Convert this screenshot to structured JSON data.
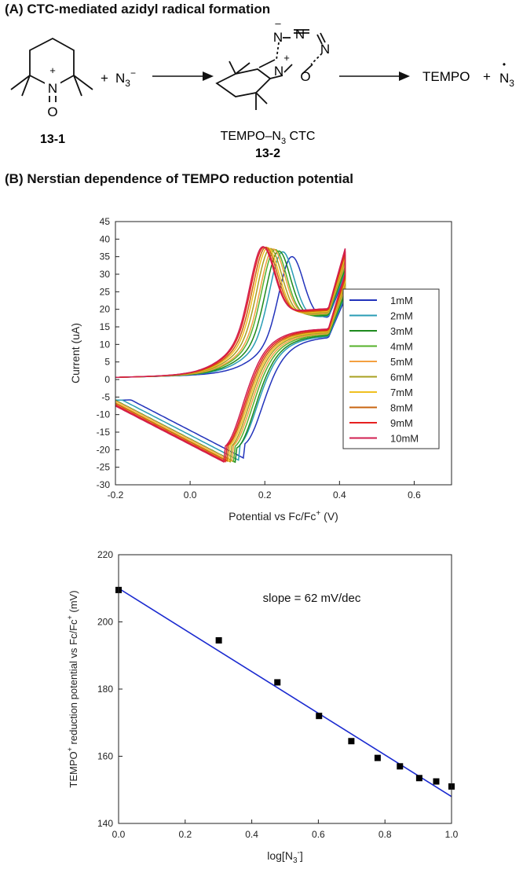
{
  "figure": {
    "panel_a_title": "(A) CTC-mediated azidyl radical formation",
    "panel_b_title": "(B) Nerstian dependence of TEMPO reduction potential"
  },
  "scheme": {
    "compound1": "13-1",
    "plus1": "+",
    "azide_base": "N",
    "azide_sub": "3",
    "azide_sup": "−",
    "ctc_label_main": "TEMPO–N",
    "ctc_label_sub": "3",
    "ctc_label_end": " CTC",
    "compound2": "13-2",
    "product": "TEMPO",
    "plus2": "+",
    "radical_base": "N",
    "radical_sub": "3",
    "radical_dot": "•",
    "atom_N": "N",
    "atom_O": "O",
    "charge_plus": "+",
    "charge_minus": "–",
    "ring_atom_N": "N",
    "ring_atom_O": "O",
    "ring_plus": "+"
  },
  "colors": {
    "series": [
      "#2233bb",
      "#2a9db5",
      "#1e8a1e",
      "#55b22a",
      "#f4a040",
      "#a8a020",
      "#f0c020",
      "#c86410",
      "#e62020",
      "#d01f50"
    ],
    "fit": "#1a2ad0",
    "markers": "#000000"
  },
  "chart_data": [
    {
      "type": "line",
      "title": "",
      "xlabel": "Potential vs Fc/Fc",
      "xlabel_sup": "+",
      "xlabel_tail": " (V)",
      "ylabel": "Current (uA)",
      "xlim": [
        -0.2,
        0.7
      ],
      "ylim": [
        -30,
        45
      ],
      "xticks": [
        -0.2,
        0.0,
        0.2,
        0.4,
        0.6
      ],
      "xtick_labels": [
        "-0.2",
        "0.0",
        "0.2",
        "0.4",
        "0.6"
      ],
      "yticks": [
        -30,
        -25,
        -20,
        -15,
        -10,
        -5,
        0,
        5,
        10,
        15,
        20,
        25,
        30,
        35,
        40,
        45
      ],
      "ytick_labels": [
        "-30",
        "-25",
        "-20",
        "-15",
        "-10",
        "-5",
        "0",
        "5",
        "10",
        "15",
        "20",
        "25",
        "30",
        "35",
        "40",
        "45"
      ],
      "legend_position": "right",
      "series": [
        {
          "name": "1mM",
          "Ea": 0.27,
          "Ec": 0.145,
          "Ipa": 36.5,
          "Ipc": -22.5
        },
        {
          "name": "2mM",
          "Ea": 0.245,
          "Ec": 0.13,
          "Ipa": 38.0,
          "Ipc": -23.0
        },
        {
          "name": "3mM",
          "Ea": 0.235,
          "Ec": 0.125,
          "Ipa": 38.3,
          "Ipc": -23.8
        },
        {
          "name": "4mM",
          "Ea": 0.225,
          "Ec": 0.118,
          "Ipa": 38.8,
          "Ipc": -23.5
        },
        {
          "name": "5mM",
          "Ea": 0.22,
          "Ec": 0.113,
          "Ipa": 39.0,
          "Ipc": -23.3
        },
        {
          "name": "6mM",
          "Ea": 0.212,
          "Ec": 0.108,
          "Ipa": 39.2,
          "Ipc": -23.5
        },
        {
          "name": "7mM",
          "Ea": 0.205,
          "Ec": 0.104,
          "Ipa": 39.5,
          "Ipc": -23.3
        },
        {
          "name": "8mM",
          "Ea": 0.2,
          "Ec": 0.1,
          "Ipa": 39.7,
          "Ipc": -23.3
        },
        {
          "name": "9mM",
          "Ea": 0.195,
          "Ec": 0.096,
          "Ipa": 39.8,
          "Ipc": -23.5
        },
        {
          "name": "10mM",
          "Ea": 0.192,
          "Ec": 0.092,
          "Ipa": 40.0,
          "Ipc": -23.6
        }
      ]
    },
    {
      "type": "scatter",
      "title": "",
      "xlabel": "log[N",
      "xlabel_sub": "3",
      "xlabel_sup": "-",
      "xlabel_tail": "]",
      "ylabel": "TEMPO",
      "ylabel_sup": "+",
      "ylabel_tail": " reduction potential vs Fc/Fc",
      "ylabel_sup2": "+",
      "ylabel_end": " (mV)",
      "annotation": "slope = 62 mV/dec",
      "xlim": [
        0.0,
        1.0
      ],
      "ylim": [
        140,
        220
      ],
      "xticks": [
        0.0,
        0.2,
        0.4,
        0.6,
        0.8,
        1.0
      ],
      "xtick_labels": [
        "0.0",
        "0.2",
        "0.4",
        "0.6",
        "0.8",
        "1.0"
      ],
      "yticks": [
        140,
        160,
        180,
        200,
        220
      ],
      "ytick_labels": [
        "140",
        "160",
        "180",
        "200",
        "220"
      ],
      "x": [
        0.0,
        0.301,
        0.477,
        0.602,
        0.699,
        0.778,
        0.845,
        0.903,
        0.954,
        1.0
      ],
      "y": [
        209.5,
        194.5,
        182.0,
        172.0,
        164.5,
        159.5,
        157.0,
        153.5,
        152.5,
        151.0
      ],
      "fit": {
        "intercept": 210.0,
        "slope": -62.0
      }
    }
  ]
}
